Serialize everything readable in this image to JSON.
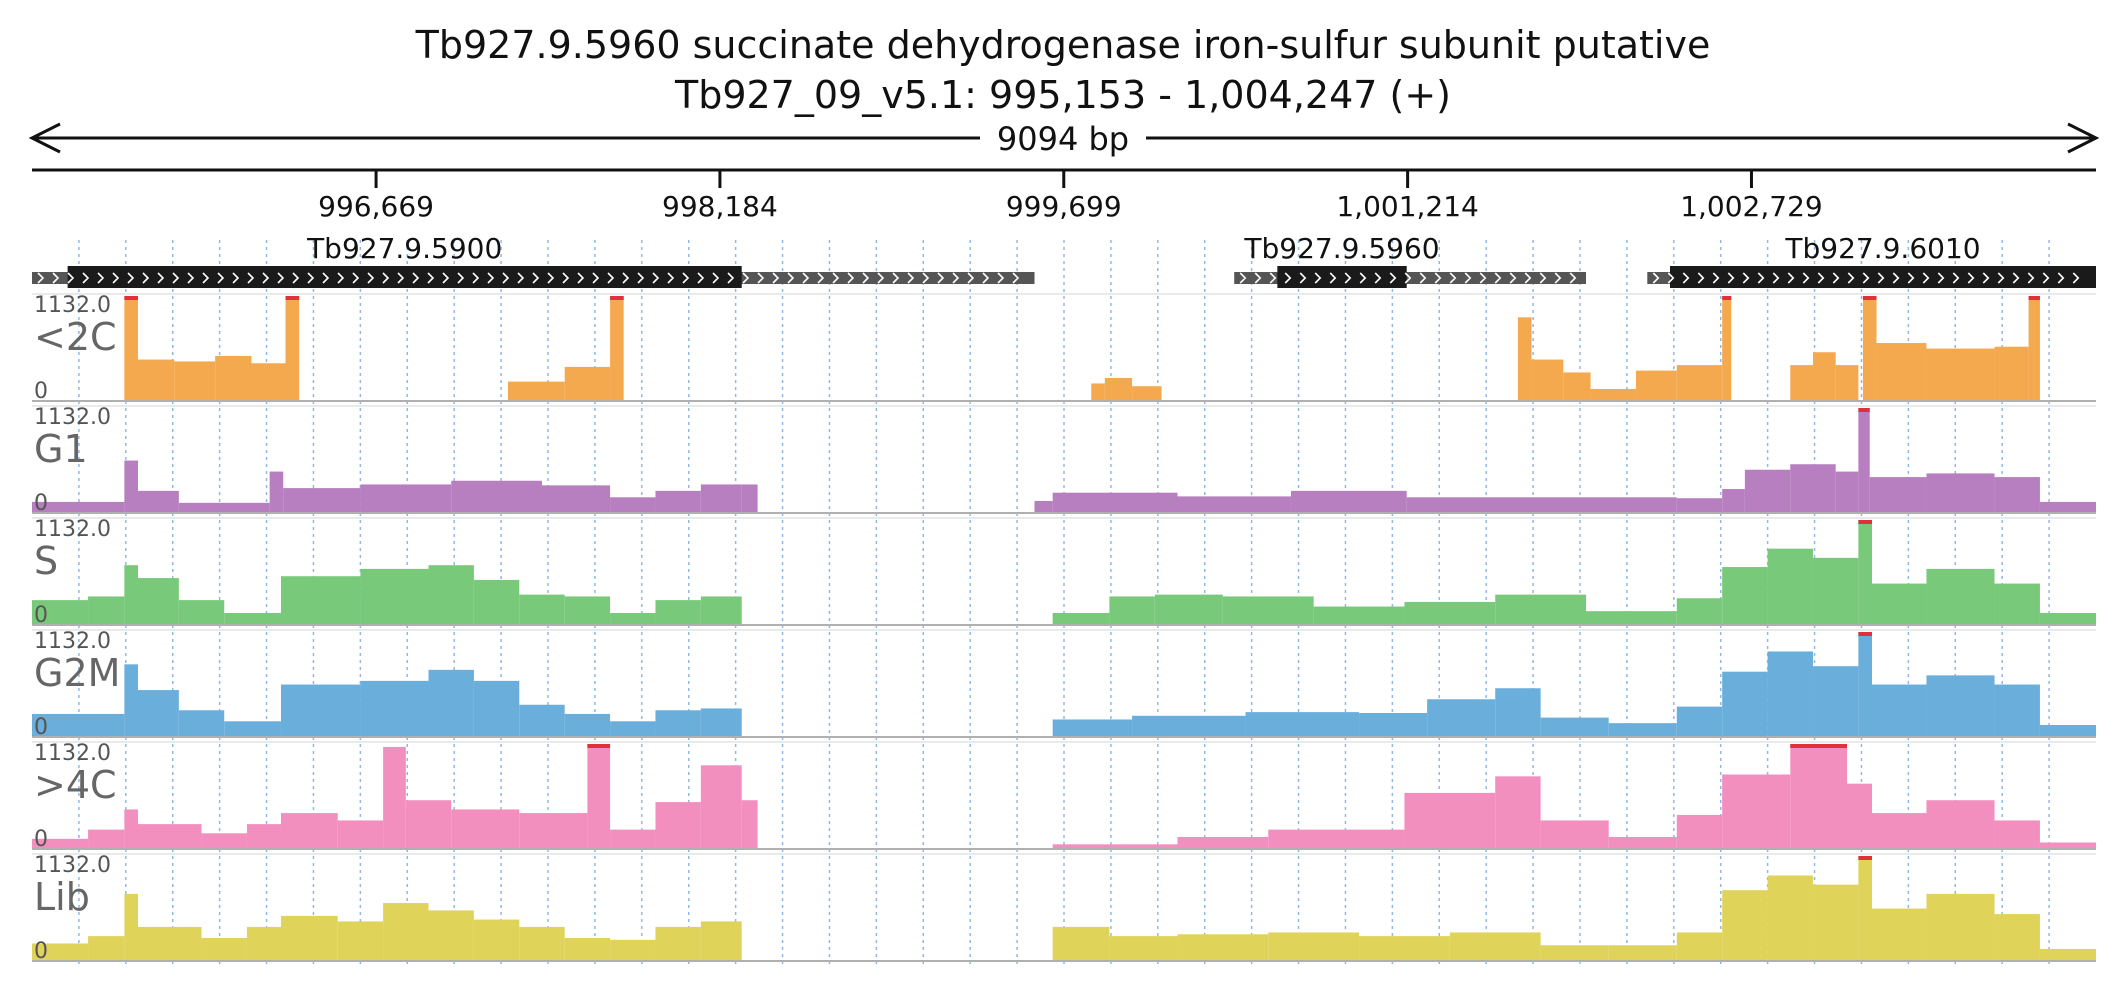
{
  "chart_data": {
    "type": "area",
    "title": "Tb927.9.5960  succinate dehydrogenase iron-sulfur subunit  putative",
    "subtitle": "Tb927_09_v5.1: 995,153 - 1,004,247 (+)",
    "span_label": "9094 bp",
    "region": {
      "start": 995153,
      "end": 1004247
    },
    "ticks": [
      {
        "pos": 996669,
        "label": "996,669"
      },
      {
        "pos": 998184,
        "label": "998,184"
      },
      {
        "pos": 999699,
        "label": "999,699"
      },
      {
        "pos": 1001214,
        "label": "1,001,214"
      },
      {
        "pos": 1002729,
        "label": "1,002,729"
      }
    ],
    "genes": [
      {
        "name": "Tb927.9.5900",
        "utr_start": 995153,
        "utr_end": 999570,
        "cds_start": 995310,
        "cds_end": 998280
      },
      {
        "name": "Tb927.9.5960",
        "utr_start": 1000450,
        "utr_end": 1002000,
        "cds_start": 1000640,
        "cds_end": 1001210
      },
      {
        "name": "Tb927.9.6010",
        "utr_start": 1002270,
        "utr_end": 1004247,
        "cds_start": 1002370,
        "cds_end": 1004247
      }
    ],
    "y_max_label": "1132.0",
    "y_min_label": "0",
    "ylim": [
      0,
      1132
    ],
    "series": [
      {
        "name": "<2C",
        "color": "#f5a94f",
        "segments": [
          [
            995560,
            995620,
            1132
          ],
          [
            995620,
            995780,
            440
          ],
          [
            995780,
            995960,
            420
          ],
          [
            995960,
            996120,
            480
          ],
          [
            996120,
            996270,
            400
          ],
          [
            996270,
            996330,
            1132
          ],
          [
            997250,
            997500,
            200
          ],
          [
            997500,
            997700,
            360
          ],
          [
            997700,
            997760,
            1132
          ],
          [
            999820,
            999880,
            180
          ],
          [
            999880,
            1000000,
            240
          ],
          [
            1000000,
            1000130,
            150
          ],
          [
            1001700,
            1001760,
            900
          ],
          [
            1001760,
            1001900,
            440
          ],
          [
            1001900,
            1002020,
            300
          ],
          [
            1002020,
            1002220,
            120
          ],
          [
            1002220,
            1002400,
            320
          ],
          [
            1002400,
            1002600,
            380
          ],
          [
            1002600,
            1002640,
            1132
          ],
          [
            1002900,
            1003000,
            380
          ],
          [
            1003000,
            1003100,
            520
          ],
          [
            1003100,
            1003200,
            380
          ],
          [
            1003220,
            1003280,
            1132
          ],
          [
            1003280,
            1003500,
            620
          ],
          [
            1003500,
            1003800,
            560
          ],
          [
            1003800,
            1003950,
            580
          ],
          [
            1003950,
            1004000,
            1132
          ]
        ]
      },
      {
        "name": "G1",
        "color": "#b77fbf",
        "segments": [
          [
            995153,
            995560,
            110
          ],
          [
            995560,
            995620,
            560
          ],
          [
            995620,
            995800,
            230
          ],
          [
            995800,
            996200,
            100
          ],
          [
            996200,
            996260,
            440
          ],
          [
            996260,
            996600,
            260
          ],
          [
            996600,
            997000,
            300
          ],
          [
            997000,
            997400,
            340
          ],
          [
            997400,
            997700,
            290
          ],
          [
            997700,
            997900,
            160
          ],
          [
            997900,
            998100,
            230
          ],
          [
            998100,
            998280,
            300
          ],
          [
            998280,
            998350,
            300
          ],
          [
            999570,
            999650,
            120
          ],
          [
            999650,
            1000200,
            210
          ],
          [
            1000200,
            1000700,
            170
          ],
          [
            1000700,
            1001210,
            230
          ],
          [
            1001210,
            1002000,
            160
          ],
          [
            1002000,
            1002400,
            160
          ],
          [
            1002400,
            1002600,
            150
          ],
          [
            1002600,
            1002700,
            250
          ],
          [
            1002700,
            1002900,
            460
          ],
          [
            1002900,
            1003100,
            520
          ],
          [
            1003100,
            1003200,
            440
          ],
          [
            1003200,
            1003250,
            1132
          ],
          [
            1003250,
            1003500,
            380
          ],
          [
            1003500,
            1003800,
            420
          ],
          [
            1003800,
            1004000,
            380
          ],
          [
            1004000,
            1004247,
            110
          ]
        ]
      },
      {
        "name": "S",
        "color": "#79c97a",
        "segments": [
          [
            995153,
            995400,
            260
          ],
          [
            995400,
            995560,
            300
          ],
          [
            995560,
            995620,
            640
          ],
          [
            995620,
            995800,
            500
          ],
          [
            995800,
            996000,
            260
          ],
          [
            996000,
            996250,
            120
          ],
          [
            996250,
            996600,
            520
          ],
          [
            996600,
            996900,
            600
          ],
          [
            996900,
            997100,
            640
          ],
          [
            997100,
            997300,
            480
          ],
          [
            997300,
            997500,
            320
          ],
          [
            997500,
            997700,
            300
          ],
          [
            997700,
            997900,
            120
          ],
          [
            997900,
            998100,
            260
          ],
          [
            998100,
            998280,
            300
          ],
          [
            999650,
            999900,
            120
          ],
          [
            999900,
            1000100,
            300
          ],
          [
            1000100,
            1000400,
            320
          ],
          [
            1000400,
            1000800,
            300
          ],
          [
            1000800,
            1001200,
            190
          ],
          [
            1001200,
            1001600,
            240
          ],
          [
            1001600,
            1002000,
            320
          ],
          [
            1002000,
            1002400,
            140
          ],
          [
            1002400,
            1002600,
            280
          ],
          [
            1002600,
            1002800,
            620
          ],
          [
            1002800,
            1003000,
            820
          ],
          [
            1003000,
            1003200,
            720
          ],
          [
            1003200,
            1003260,
            1132
          ],
          [
            1003260,
            1003500,
            440
          ],
          [
            1003500,
            1003800,
            600
          ],
          [
            1003800,
            1004000,
            440
          ],
          [
            1004000,
            1004247,
            120
          ]
        ]
      },
      {
        "name": "G2M",
        "color": "#6aaedc",
        "segments": [
          [
            995153,
            995560,
            240
          ],
          [
            995560,
            995620,
            780
          ],
          [
            995620,
            995800,
            500
          ],
          [
            995800,
            996000,
            280
          ],
          [
            996000,
            996250,
            160
          ],
          [
            996250,
            996600,
            560
          ],
          [
            996600,
            996900,
            600
          ],
          [
            996900,
            997100,
            720
          ],
          [
            997100,
            997300,
            600
          ],
          [
            997300,
            997500,
            340
          ],
          [
            997500,
            997700,
            240
          ],
          [
            997700,
            997900,
            160
          ],
          [
            997900,
            998100,
            280
          ],
          [
            998100,
            998280,
            300
          ],
          [
            999650,
            1000000,
            180
          ],
          [
            1000000,
            1000500,
            220
          ],
          [
            1000500,
            1001000,
            260
          ],
          [
            1001000,
            1001300,
            250
          ],
          [
            1001300,
            1001600,
            400
          ],
          [
            1001600,
            1001800,
            520
          ],
          [
            1001800,
            1002100,
            200
          ],
          [
            1002100,
            1002400,
            140
          ],
          [
            1002400,
            1002600,
            320
          ],
          [
            1002600,
            1002800,
            700
          ],
          [
            1002800,
            1003000,
            920
          ],
          [
            1003000,
            1003200,
            760
          ],
          [
            1003200,
            1003260,
            1132
          ],
          [
            1003260,
            1003500,
            560
          ],
          [
            1003500,
            1003800,
            660
          ],
          [
            1003800,
            1004000,
            560
          ],
          [
            1004000,
            1004247,
            120
          ]
        ]
      },
      {
        "name": ">4C",
        "color": "#f28fbf",
        "segments": [
          [
            995153,
            995400,
            100
          ],
          [
            995400,
            995560,
            200
          ],
          [
            995560,
            995620,
            420
          ],
          [
            995620,
            995900,
            260
          ],
          [
            995900,
            996100,
            160
          ],
          [
            996100,
            996250,
            260
          ],
          [
            996250,
            996500,
            380
          ],
          [
            996500,
            996700,
            300
          ],
          [
            996700,
            996800,
            1100
          ],
          [
            996800,
            997000,
            520
          ],
          [
            997000,
            997300,
            420
          ],
          [
            997300,
            997600,
            380
          ],
          [
            997600,
            997700,
            1132
          ],
          [
            997700,
            997900,
            200
          ],
          [
            997900,
            998100,
            500
          ],
          [
            998100,
            998280,
            900
          ],
          [
            998280,
            998350,
            520
          ],
          [
            999650,
            1000200,
            40
          ],
          [
            1000200,
            1000600,
            120
          ],
          [
            1000600,
            1001200,
            200
          ],
          [
            1001200,
            1001600,
            600
          ],
          [
            1001600,
            1001800,
            780
          ],
          [
            1001800,
            1002100,
            300
          ],
          [
            1002100,
            1002400,
            120
          ],
          [
            1002400,
            1002600,
            360
          ],
          [
            1002600,
            1002900,
            800
          ],
          [
            1002900,
            1003150,
            1132
          ],
          [
            1003150,
            1003260,
            700
          ],
          [
            1003260,
            1003500,
            380
          ],
          [
            1003500,
            1003800,
            520
          ],
          [
            1003800,
            1004000,
            300
          ],
          [
            1004000,
            1004247,
            60
          ]
        ]
      },
      {
        "name": "Lib",
        "color": "#e0d35a",
        "segments": [
          [
            995153,
            995400,
            180
          ],
          [
            995400,
            995560,
            260
          ],
          [
            995560,
            995620,
            720
          ],
          [
            995620,
            995900,
            360
          ],
          [
            995900,
            996100,
            240
          ],
          [
            996100,
            996250,
            360
          ],
          [
            996250,
            996500,
            480
          ],
          [
            996500,
            996700,
            420
          ],
          [
            996700,
            996900,
            620
          ],
          [
            996900,
            997100,
            540
          ],
          [
            997100,
            997300,
            440
          ],
          [
            997300,
            997500,
            360
          ],
          [
            997500,
            997700,
            240
          ],
          [
            997700,
            997900,
            220
          ],
          [
            997900,
            998100,
            360
          ],
          [
            998100,
            998280,
            420
          ],
          [
            999650,
            999900,
            360
          ],
          [
            999900,
            1000200,
            260
          ],
          [
            1000200,
            1000600,
            280
          ],
          [
            1000600,
            1001000,
            300
          ],
          [
            1001000,
            1001400,
            260
          ],
          [
            1001400,
            1001800,
            300
          ],
          [
            1001800,
            1002100,
            160
          ],
          [
            1002100,
            1002400,
            160
          ],
          [
            1002400,
            1002600,
            300
          ],
          [
            1002600,
            1002800,
            760
          ],
          [
            1002800,
            1003000,
            920
          ],
          [
            1003000,
            1003200,
            820
          ],
          [
            1003200,
            1003260,
            1132
          ],
          [
            1003260,
            1003500,
            560
          ],
          [
            1003500,
            1003800,
            720
          ],
          [
            1003800,
            1004000,
            500
          ],
          [
            1004000,
            1004247,
            120
          ]
        ]
      }
    ],
    "clip_color": "#e0303a",
    "grid_color": "#8fb8e8"
  }
}
